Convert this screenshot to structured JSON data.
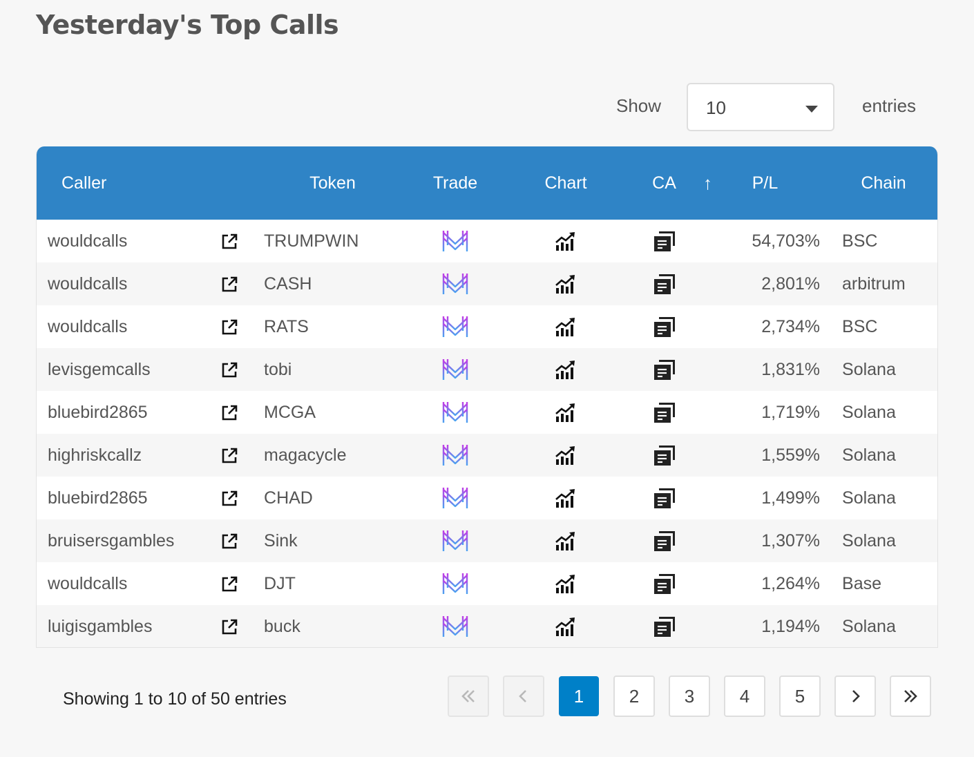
{
  "title": "Yesterday's Top Calls",
  "length_menu": {
    "show_label": "Show",
    "value": "10",
    "entries_label": "entries"
  },
  "columns": {
    "caller": "Caller",
    "token": "Token",
    "trade": "Trade",
    "chart": "Chart",
    "ca": "CA",
    "pl": "P/L",
    "chain": "Chain"
  },
  "icons": {
    "link": "external-link-icon",
    "trade": "trade-logo-icon",
    "chart": "chart-growth-icon",
    "ca": "copy-icon",
    "sort": "sort-ascending-icon"
  },
  "colors": {
    "header_bg": "#2f84c6",
    "active_page": "#0080c8"
  },
  "rows": [
    {
      "caller": "wouldcalls",
      "token": "TRUMPWIN",
      "pl": "54,703%",
      "chain": "BSC"
    },
    {
      "caller": "wouldcalls",
      "token": "CASH",
      "pl": "2,801%",
      "chain": "arbitrum"
    },
    {
      "caller": "wouldcalls",
      "token": "RATS",
      "pl": "2,734%",
      "chain": "BSC"
    },
    {
      "caller": "levisgemcalls",
      "token": "tobi",
      "pl": "1,831%",
      "chain": "Solana"
    },
    {
      "caller": "bluebird2865",
      "token": "MCGA",
      "pl": "1,719%",
      "chain": "Solana"
    },
    {
      "caller": "highriskcallz",
      "token": "magacycle",
      "pl": "1,559%",
      "chain": "Solana"
    },
    {
      "caller": "bluebird2865",
      "token": "CHAD",
      "pl": "1,499%",
      "chain": "Solana"
    },
    {
      "caller": "bruisersgambles",
      "token": "Sink",
      "pl": "1,307%",
      "chain": "Solana"
    },
    {
      "caller": "wouldcalls",
      "token": "DJT",
      "pl": "1,264%",
      "chain": "Base"
    },
    {
      "caller": "luigisgambles",
      "token": "buck",
      "pl": "1,194%",
      "chain": "Solana"
    }
  ],
  "info": "Showing 1 to 10 of 50 entries",
  "pagination": {
    "first": "«",
    "prev": "‹",
    "pages": [
      "1",
      "2",
      "3",
      "4",
      "5"
    ],
    "next": "›",
    "last": "»",
    "active_page": "1"
  }
}
